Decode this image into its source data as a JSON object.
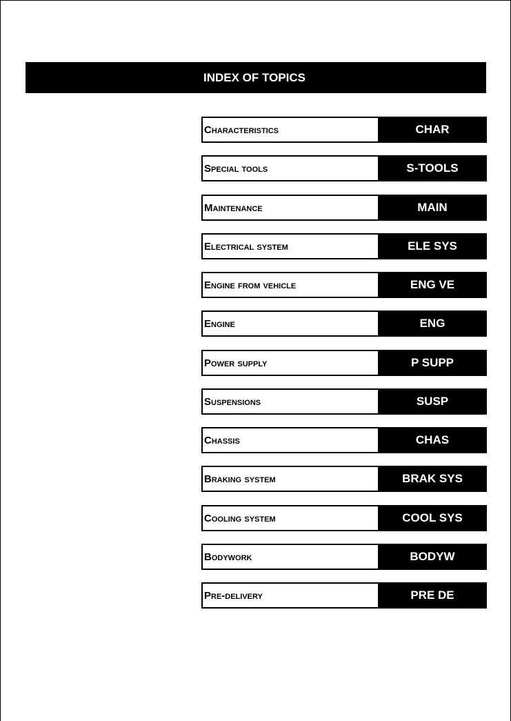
{
  "title": "INDEX OF TOPICS",
  "topics": [
    {
      "name": "Characteristics",
      "code": "CHAR"
    },
    {
      "name": "Special tools",
      "code": "S-TOOLS"
    },
    {
      "name": "Maintenance",
      "code": "MAIN"
    },
    {
      "name": "Electrical system",
      "code": "ELE SYS"
    },
    {
      "name": "Engine from vehicle",
      "code": "ENG VE"
    },
    {
      "name": "Engine",
      "code": "ENG"
    },
    {
      "name": "Power supply",
      "code": "P SUPP"
    },
    {
      "name": "Suspensions",
      "code": "SUSP"
    },
    {
      "name": "Chassis",
      "code": "CHAS"
    },
    {
      "name": "Braking system",
      "code": "BRAK SYS"
    },
    {
      "name": "Cooling system",
      "code": "COOL SYS"
    },
    {
      "name": "Bodywork",
      "code": "BODYW"
    },
    {
      "name": "Pre-delivery",
      "code": "PRE DE"
    }
  ]
}
